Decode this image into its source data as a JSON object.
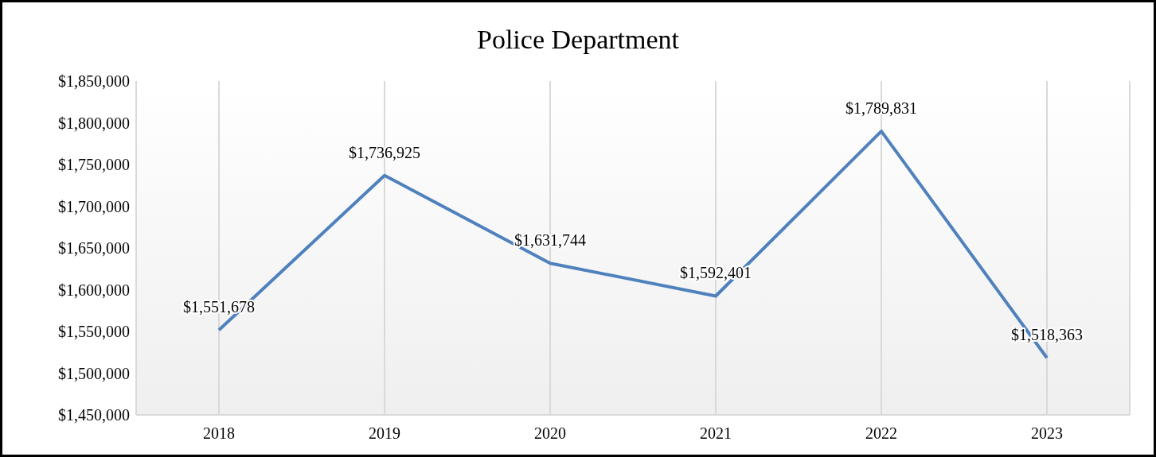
{
  "chart_data": {
    "type": "line",
    "title": "Police Department",
    "categories": [
      "2018",
      "2019",
      "2020",
      "2021",
      "2022",
      "2023"
    ],
    "series": [
      {
        "color": "#4f81bd",
        "values": [
          1551678,
          1736925,
          1631744,
          1592401,
          1789831,
          1518363
        ],
        "value_labels": [
          "$1,551,678",
          "$1,736,925",
          "$1,631,744",
          "$1,592,401",
          "$1,789,831",
          "$1,518,363"
        ]
      }
    ],
    "ylim": [
      1450000,
      1850000
    ],
    "yticks": [
      {
        "value": 1450000,
        "label": "$1,450,000"
      },
      {
        "value": 1500000,
        "label": "$1,500,000"
      },
      {
        "value": 1550000,
        "label": "$1,550,000"
      },
      {
        "value": 1600000,
        "label": "$1,600,000"
      },
      {
        "value": 1650000,
        "label": "$1,650,000"
      },
      {
        "value": 1700000,
        "label": "$1,700,000"
      },
      {
        "value": 1750000,
        "label": "$1,750,000"
      },
      {
        "value": 1800000,
        "label": "$1,800,000"
      },
      {
        "value": 1850000,
        "label": "$1,850,000"
      }
    ],
    "grid": "x",
    "marker": "none",
    "line_style": "solid",
    "legend": false
  }
}
